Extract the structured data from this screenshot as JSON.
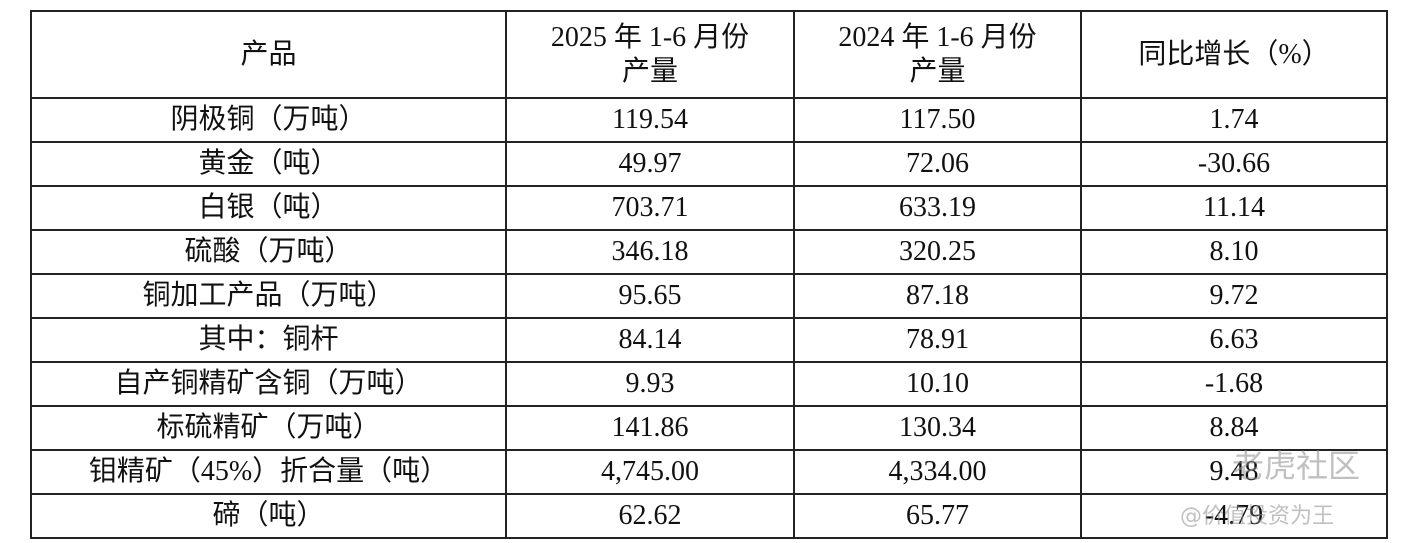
{
  "table": {
    "header": [
      [
        "产品"
      ],
      [
        "2025 年 1-6 月份",
        "产量"
      ],
      [
        "2024 年 1-6 月份",
        "产量"
      ],
      [
        "同比增长（%）"
      ]
    ],
    "rows": [
      [
        "阴极铜（万吨）",
        "119.54",
        "117.50",
        "1.74"
      ],
      [
        "黄金（吨）",
        "49.97",
        "72.06",
        "-30.66"
      ],
      [
        "白银（吨）",
        "703.71",
        "633.19",
        "11.14"
      ],
      [
        "硫酸（万吨）",
        "346.18",
        "320.25",
        "8.10"
      ],
      [
        "铜加工产品（万吨）",
        "95.65",
        "87.18",
        "9.72"
      ],
      [
        "其中：铜杆",
        "84.14",
        "78.91",
        "6.63"
      ],
      [
        "自产铜精矿含铜（万吨）",
        "9.93",
        "10.10",
        "-1.68"
      ],
      [
        "标硫精矿（万吨）",
        "141.86",
        "130.34",
        "8.84"
      ],
      [
        "钼精矿（45%）折合量（吨）",
        "4,745.00",
        "4,334.00",
        "9.48"
      ],
      [
        "碲（吨）",
        "62.62",
        "65.77",
        "-4.79"
      ]
    ]
  },
  "watermark": {
    "brand": "老虎社区",
    "author": "@价值投资为王"
  }
}
